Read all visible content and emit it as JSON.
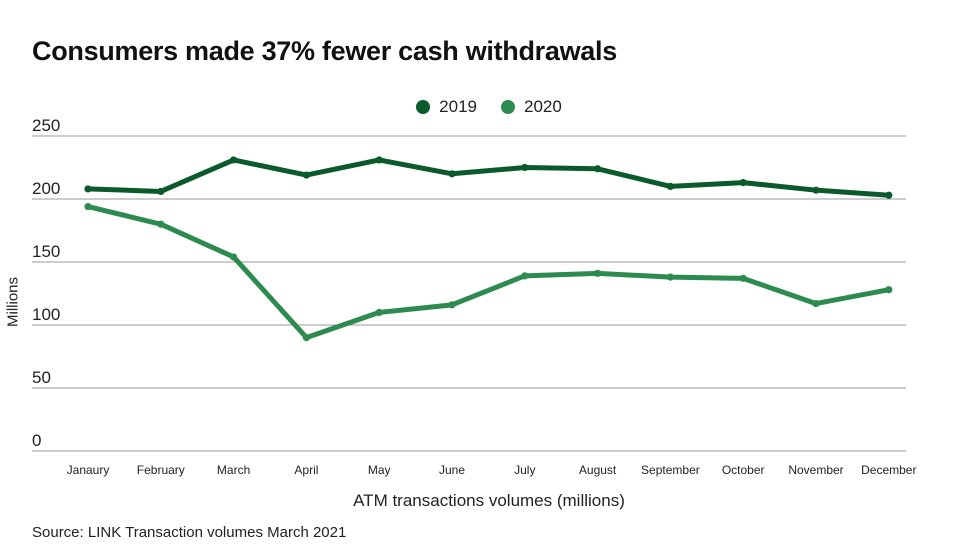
{
  "title": "Consumers made 37% fewer cash withdrawals",
  "source": "Source: LINK Transaction volumes March 2021",
  "colors": {
    "s2019": "#0b5a2b",
    "s2020": "#2e8b4f",
    "grid": "#9a9a9a"
  },
  "chart_data": {
    "type": "line",
    "title": "Consumers made 37% fewer cash withdrawals",
    "xlabel": "ATM transactions volumes (millions)",
    "ylabel": "Millions",
    "ylim": [
      0,
      250
    ],
    "yticks": [
      0,
      50,
      100,
      150,
      200,
      250
    ],
    "grid": true,
    "legend_position": "top-center",
    "categories": [
      "Janaury",
      "February",
      "March",
      "April",
      "May",
      "June",
      "July",
      "August",
      "September",
      "October",
      "November",
      "December"
    ],
    "series": [
      {
        "name": "2019",
        "values": [
          208,
          206,
          231,
          219,
          231,
          220,
          225,
          224,
          210,
          213,
          207,
          203
        ]
      },
      {
        "name": "2020",
        "values": [
          194,
          180,
          154,
          90,
          110,
          116,
          139,
          141,
          138,
          137,
          117,
          128
        ]
      }
    ]
  }
}
